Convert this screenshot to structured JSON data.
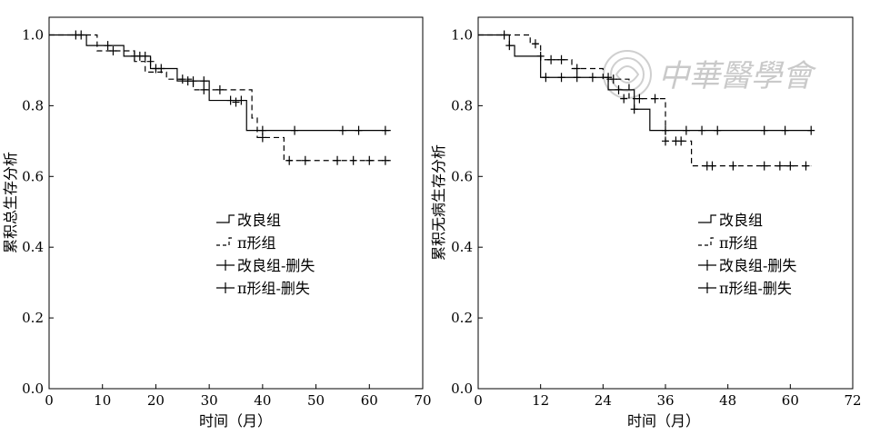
{
  "watermark": {
    "text": "中華醫學會"
  },
  "chart_data": [
    {
      "type": "line",
      "subtype": "kaplan-meier",
      "title": "",
      "xlabel": "时间（月）",
      "ylabel": "累积总生存分析",
      "xlim": [
        0,
        70
      ],
      "ylim": [
        0,
        1.05
      ],
      "xticks": [
        0,
        10,
        20,
        30,
        40,
        50,
        60,
        70
      ],
      "yticks": [
        0.0,
        0.2,
        0.4,
        0.6,
        0.8,
        1.0
      ],
      "xtick_labels": [
        "0",
        "10",
        "20",
        "30",
        "40",
        "50",
        "60",
        "70"
      ],
      "ytick_labels": [
        "0.0",
        "0.2",
        "0.4",
        "0.6",
        "0.8",
        "1.0"
      ],
      "legend_position": "center",
      "legend": [
        {
          "label": "改良组",
          "marker": "step",
          "dash": "solid"
        },
        {
          "label": "π形组",
          "marker": "step",
          "dash": "dashed"
        },
        {
          "label": "改良组-删失",
          "marker": "plus",
          "dash": "solid"
        },
        {
          "label": "π形组-删失",
          "marker": "plus",
          "dash": "solid"
        }
      ],
      "series": [
        {
          "name": "改良组",
          "dash": "solid",
          "steps": [
            [
              0,
              1.0
            ],
            [
              7,
              0.97
            ],
            [
              14,
              0.94
            ],
            [
              19,
              0.905
            ],
            [
              24,
              0.87
            ],
            [
              30,
              0.815
            ],
            [
              37,
              0.73
            ],
            [
              64,
              0.73
            ]
          ],
          "censored": [
            [
              6,
              1.0
            ],
            [
              11,
              0.97
            ],
            [
              16,
              0.94
            ],
            [
              17,
              0.94
            ],
            [
              18,
              0.94
            ],
            [
              20,
              0.905
            ],
            [
              21,
              0.905
            ],
            [
              26,
              0.87
            ],
            [
              27,
              0.87
            ],
            [
              29,
              0.87
            ],
            [
              34,
              0.815
            ],
            [
              36,
              0.815
            ],
            [
              40,
              0.73
            ],
            [
              46,
              0.73
            ],
            [
              55,
              0.73
            ],
            [
              58,
              0.73
            ],
            [
              63,
              0.73
            ]
          ]
        },
        {
          "name": "π形组",
          "dash": "dashed",
          "steps": [
            [
              0,
              1.0
            ],
            [
              9,
              0.955
            ],
            [
              16,
              0.925
            ],
            [
              18,
              0.895
            ],
            [
              22,
              0.875
            ],
            [
              27,
              0.845
            ],
            [
              38,
              0.765
            ],
            [
              39,
              0.71
            ],
            [
              44,
              0.645
            ],
            [
              64,
              0.645
            ]
          ],
          "censored": [
            [
              5,
              1.0
            ],
            [
              12,
              0.955
            ],
            [
              19,
              0.925
            ],
            [
              25,
              0.875
            ],
            [
              29,
              0.845
            ],
            [
              32,
              0.845
            ],
            [
              35,
              0.81
            ],
            [
              40,
              0.71
            ],
            [
              45,
              0.645
            ],
            [
              48,
              0.645
            ],
            [
              54,
              0.645
            ],
            [
              57,
              0.645
            ],
            [
              60,
              0.645
            ],
            [
              63,
              0.645
            ]
          ]
        }
      ]
    },
    {
      "type": "line",
      "subtype": "kaplan-meier",
      "title": "",
      "xlabel": "时间（月）",
      "ylabel": "累积无病生存分析",
      "xlim": [
        0,
        72
      ],
      "ylim": [
        0,
        1.05
      ],
      "xticks": [
        0,
        12,
        24,
        36,
        48,
        60,
        72
      ],
      "yticks": [
        0.0,
        0.2,
        0.4,
        0.6,
        0.8,
        1.0
      ],
      "xtick_labels": [
        "0",
        "12",
        "24",
        "36",
        "48",
        "60",
        "72"
      ],
      "ytick_labels": [
        "0.0",
        "0.2",
        "0.4",
        "0.6",
        "0.8",
        "1.0"
      ],
      "legend_position": "center",
      "legend": [
        {
          "label": "改良组",
          "marker": "step",
          "dash": "solid"
        },
        {
          "label": "π形组",
          "marker": "step",
          "dash": "dashed"
        },
        {
          "label": "改良组-删失",
          "marker": "plus",
          "dash": "solid"
        },
        {
          "label": "π形组-删失",
          "marker": "plus",
          "dash": "solid"
        }
      ],
      "series": [
        {
          "name": "改良组",
          "dash": "solid",
          "steps": [
            [
              0,
              1.0
            ],
            [
              6,
              0.97
            ],
            [
              7,
              0.94
            ],
            [
              12,
              0.88
            ],
            [
              25,
              0.845
            ],
            [
              30,
              0.79
            ],
            [
              33,
              0.73
            ],
            [
              64,
              0.73
            ]
          ],
          "censored": [
            [
              6,
              0.97
            ],
            [
              12,
              0.94
            ],
            [
              13,
              0.88
            ],
            [
              16,
              0.88
            ],
            [
              19,
              0.88
            ],
            [
              22,
              0.88
            ],
            [
              25,
              0.88
            ],
            [
              27,
              0.845
            ],
            [
              30,
              0.79
            ],
            [
              36,
              0.73
            ],
            [
              40,
              0.73
            ],
            [
              43,
              0.73
            ],
            [
              46,
              0.73
            ],
            [
              55,
              0.73
            ],
            [
              59,
              0.73
            ],
            [
              64,
              0.73
            ]
          ]
        },
        {
          "name": "π形组",
          "dash": "dashed",
          "steps": [
            [
              0,
              1.0
            ],
            [
              10,
              0.975
            ],
            [
              12,
              0.93
            ],
            [
              18,
              0.905
            ],
            [
              24,
              0.875
            ],
            [
              29,
              0.82
            ],
            [
              36,
              0.7
            ],
            [
              41,
              0.63
            ],
            [
              64,
              0.63
            ]
          ],
          "censored": [
            [
              5,
              1.0
            ],
            [
              11,
              0.975
            ],
            [
              14,
              0.93
            ],
            [
              16,
              0.93
            ],
            [
              19,
              0.905
            ],
            [
              26,
              0.875
            ],
            [
              28,
              0.82
            ],
            [
              31,
              0.82
            ],
            [
              34,
              0.82
            ],
            [
              36,
              0.7
            ],
            [
              38,
              0.7
            ],
            [
              39,
              0.7
            ],
            [
              44,
              0.63
            ],
            [
              45,
              0.63
            ],
            [
              49,
              0.63
            ],
            [
              55,
              0.63
            ],
            [
              58,
              0.63
            ],
            [
              60,
              0.63
            ],
            [
              63,
              0.63
            ]
          ]
        }
      ]
    }
  ]
}
